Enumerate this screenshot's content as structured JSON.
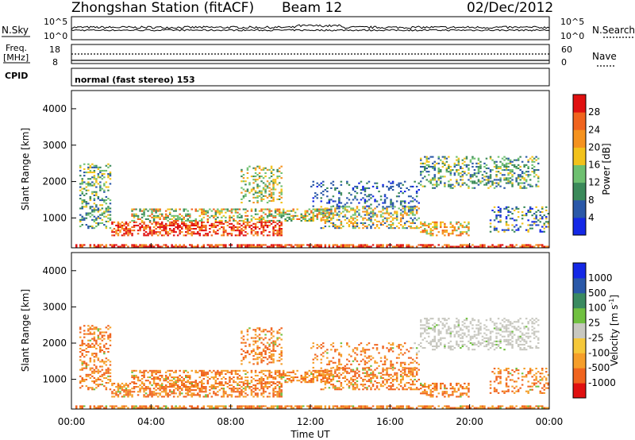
{
  "header": {
    "station_title": "Zhongshan Station (fitACF)",
    "beam": "Beam 12",
    "date": "02/Dec/2012"
  },
  "top_panels": {
    "nsky_label": "N.Sky",
    "nsearch_label": "N.Search",
    "noise_ticks_left": [
      "10^5",
      "10^0"
    ],
    "noise_ticks_right": [
      "10^5",
      "10^0"
    ],
    "freq_label_line1": "Freq.",
    "freq_label_line2": "[MHz]",
    "freq_ticks": [
      "18",
      "8"
    ],
    "nave_label": "Nave",
    "nave_ticks": [
      "60",
      "0"
    ],
    "cpid_label": "CPID",
    "cpid_value": "normal (fast stereo) 153"
  },
  "colors": {
    "power": [
      "#1428e6",
      "#2a58a8",
      "#3b8a5a",
      "#6ec070",
      "#f2c21b",
      "#f5921e",
      "#f0641e",
      "#e01010"
    ],
    "velocity": [
      "#e01010",
      "#f0641e",
      "#f59e2a",
      "#f5c83a",
      "#c8c8c0",
      "#70c040",
      "#3a8a60",
      "#2a58a8",
      "#1428e6"
    ]
  },
  "chart_data": [
    {
      "type": "heatmap",
      "title": "",
      "xlabel": "",
      "ylabel": "Slant Range [km]",
      "xlim": [
        0,
        24
      ],
      "ylim": [
        180,
        4500
      ],
      "x_ticks": [],
      "y_ticks": [
        "1000",
        "2000",
        "3000",
        "4000"
      ],
      "colorbar": {
        "label": "Power [dB]",
        "ticks": [
          "4",
          "8",
          "12",
          "16",
          "20",
          "24",
          "28"
        ],
        "range": [
          0,
          32
        ]
      }
    },
    {
      "type": "heatmap",
      "title": "",
      "xlabel": "Time UT",
      "ylabel": "Slant Range [km]",
      "xlim": [
        0,
        24
      ],
      "ylim": [
        180,
        4500
      ],
      "x_ticks": [
        "00:00",
        "04:00",
        "08:00",
        "12:00",
        "16:00",
        "20:00",
        "00:00"
      ],
      "y_ticks": [
        "1000",
        "2000",
        "3000",
        "4000"
      ],
      "colorbar": {
        "label": "Velocity [m s",
        "label_sup": "-1",
        "label_end": "]",
        "ticks": [
          "1000",
          "500",
          "100",
          "25",
          "-25",
          "-100",
          "-500",
          "-1000"
        ]
      }
    }
  ]
}
